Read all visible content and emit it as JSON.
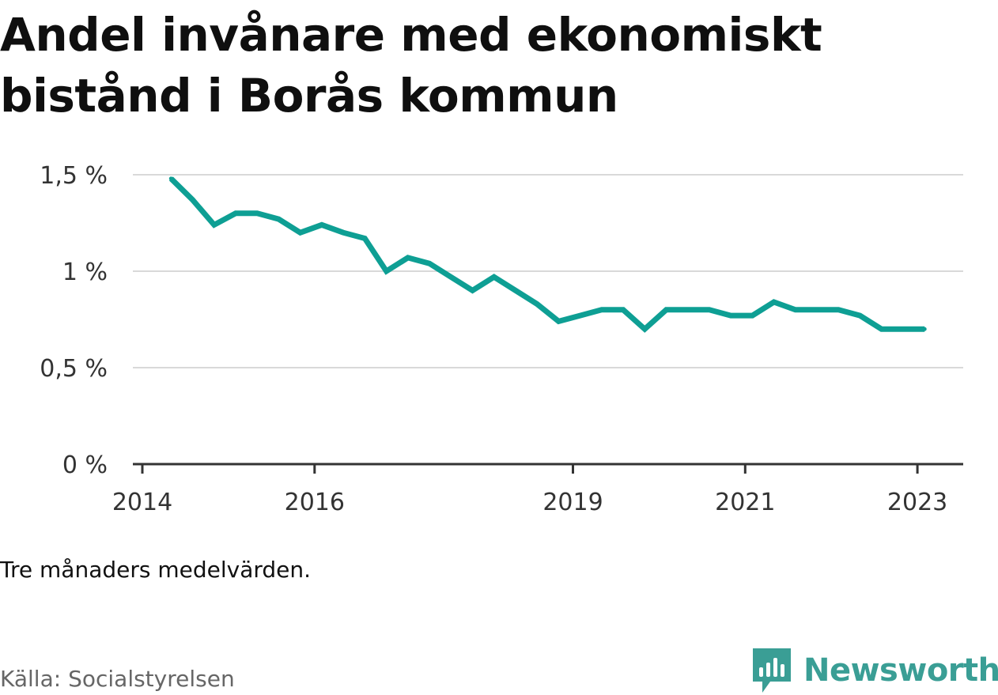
{
  "title": "Andel invånare med ekonomiskt bistånd i Borås kommun",
  "note": "Tre månaders medelvärden.",
  "source": "Källa: Socialstyrelsen",
  "brand": {
    "name": "Newsworthy",
    "icon": "newsworthy-logo-icon",
    "color": "#3a9e95"
  },
  "colors": {
    "line": "#0e9f94",
    "grid": "#d9d9d9",
    "axis": "#333333",
    "tick_label": "#333333"
  },
  "chart_data": {
    "type": "line",
    "title": "Andel invånare med ekonomiskt bistånd i Borås kommun",
    "xlabel": "",
    "ylabel": "",
    "x_ticks": [
      "2014",
      "2016",
      "2019",
      "2021",
      "2023"
    ],
    "y_ticks": [
      "0 %",
      "0,5 %",
      "1 %",
      "1,5 %"
    ],
    "ylim": [
      0,
      1.5
    ],
    "grid": true,
    "series": [
      {
        "values": [
          {
            "x": "2014-05",
            "y": 1.48
          },
          {
            "x": "2014-08",
            "y": 1.37
          },
          {
            "x": "2014-11",
            "y": 1.24
          },
          {
            "x": "2015-02",
            "y": 1.3
          },
          {
            "x": "2015-05",
            "y": 1.3
          },
          {
            "x": "2015-08",
            "y": 1.27
          },
          {
            "x": "2015-11",
            "y": 1.2
          },
          {
            "x": "2016-02",
            "y": 1.24
          },
          {
            "x": "2016-05",
            "y": 1.2
          },
          {
            "x": "2016-08",
            "y": 1.17
          },
          {
            "x": "2016-11",
            "y": 1.0
          },
          {
            "x": "2017-02",
            "y": 1.07
          },
          {
            "x": "2017-05",
            "y": 1.04
          },
          {
            "x": "2017-08",
            "y": 0.97
          },
          {
            "x": "2017-11",
            "y": 0.9
          },
          {
            "x": "2018-02",
            "y": 0.97
          },
          {
            "x": "2018-05",
            "y": 0.9
          },
          {
            "x": "2018-08",
            "y": 0.83
          },
          {
            "x": "2018-11",
            "y": 0.74
          },
          {
            "x": "2019-02",
            "y": 0.77
          },
          {
            "x": "2019-05",
            "y": 0.8
          },
          {
            "x": "2019-08",
            "y": 0.8
          },
          {
            "x": "2019-11",
            "y": 0.7
          },
          {
            "x": "2020-02",
            "y": 0.8
          },
          {
            "x": "2020-05",
            "y": 0.8
          },
          {
            "x": "2020-08",
            "y": 0.8
          },
          {
            "x": "2020-11",
            "y": 0.77
          },
          {
            "x": "2021-02",
            "y": 0.77
          },
          {
            "x": "2021-05",
            "y": 0.84
          },
          {
            "x": "2021-08",
            "y": 0.8
          },
          {
            "x": "2021-11",
            "y": 0.8
          },
          {
            "x": "2022-02",
            "y": 0.8
          },
          {
            "x": "2022-05",
            "y": 0.77
          },
          {
            "x": "2022-08",
            "y": 0.7
          },
          {
            "x": "2022-11",
            "y": 0.7
          },
          {
            "x": "2023-02",
            "y": 0.7
          }
        ]
      }
    ]
  }
}
